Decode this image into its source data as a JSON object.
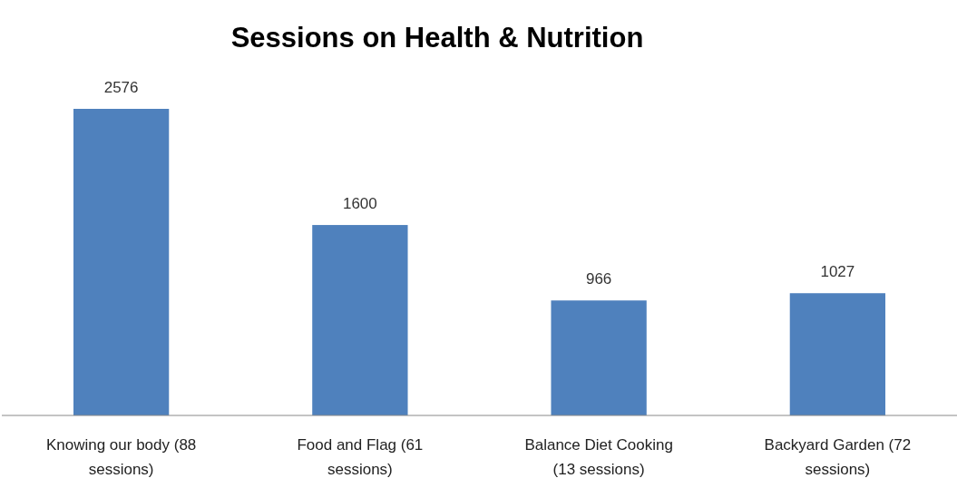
{
  "chart_data": {
    "type": "bar",
    "title": "Sessions on Health & Nutrition",
    "categories": [
      "Knowing our body (88 sessions)",
      "Food and Flag (61 sessions)",
      "Balance Diet Cooking (13 sessions)",
      "Backyard Garden (72 sessions)"
    ],
    "values": [
      2576,
      1600,
      966,
      1027
    ],
    "color": "#4f81bd",
    "data_labels": true
  }
}
